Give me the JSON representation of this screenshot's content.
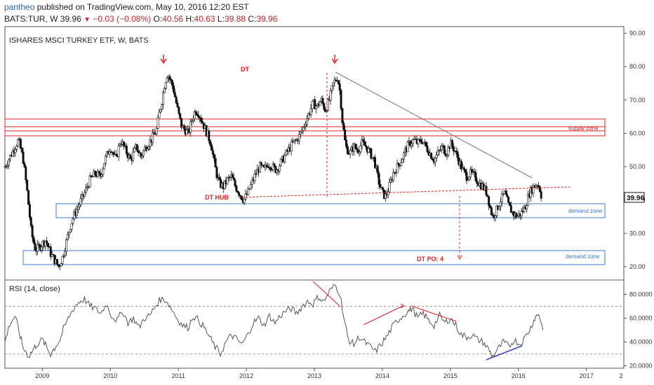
{
  "header": {
    "author": "pantheo",
    "published": "published on TradingView.com, May 10, 2016 12:20 EST",
    "symbol": "BATS:TUR, W",
    "last": "39.96",
    "change": "−0.03 (−0.08%)",
    "o_label": "O:",
    "o_value": "40.56",
    "h_label": "H:",
    "h_value": "40.63",
    "l_label": "L:",
    "l_value": "39.88",
    "c_label": "C:",
    "c_value": "39.96"
  },
  "price_pane": {
    "title": "ISHARES MSCI TURKEY ETF, W, BATS",
    "price_ticks": [
      "90.00",
      "80.00",
      "70.00",
      "60.00",
      "50.00",
      "40.00",
      "30.00",
      "20.00"
    ],
    "last_price_tag": "39.96",
    "annotations": {
      "dt": "DT",
      "dt_hub": "DT HUB",
      "dt_po": "DT PO: 4",
      "supply_zone": "supply zone",
      "demand_zone_upper": "demand zone",
      "demand_zone_lower": "demand zone"
    }
  },
  "rsi_pane": {
    "title": "RSI (14, close)",
    "ticks": [
      "80.0000",
      "60.0000",
      "40.0000",
      "20.0000"
    ]
  },
  "x_axis": {
    "ticks": [
      "2009",
      "2010",
      "2011",
      "2012",
      "2013",
      "2014",
      "2015",
      "2016",
      "2017",
      "2"
    ]
  },
  "colors": {
    "candle": "#111111",
    "annotation_red": "#e02020",
    "zone_red": "#e02020",
    "zone_blue": "#3f78c8",
    "trendline_gray": "#777777",
    "rsi_line": "#555555",
    "rsi_blue": "#3344cc"
  },
  "chart_data": [
    {
      "type": "candlestick",
      "title": "ISHARES MSCI TURKEY ETF, W, BATS",
      "interval": "weekly",
      "y_range": [
        16,
        92
      ],
      "x_range": [
        2008.45,
        2017.55
      ],
      "close_path": [
        [
          2008.45,
          50
        ],
        [
          2008.55,
          54
        ],
        [
          2008.65,
          58
        ],
        [
          2008.72,
          52
        ],
        [
          2008.78,
          42
        ],
        [
          2008.84,
          30
        ],
        [
          2008.9,
          25
        ],
        [
          2008.96,
          26
        ],
        [
          2009.05,
          28
        ],
        [
          2009.12,
          24
        ],
        [
          2009.18,
          22
        ],
        [
          2009.24,
          20
        ],
        [
          2009.3,
          23
        ],
        [
          2009.36,
          28
        ],
        [
          2009.42,
          33
        ],
        [
          2009.48,
          36
        ],
        [
          2009.55,
          39
        ],
        [
          2009.62,
          42
        ],
        [
          2009.7,
          46
        ],
        [
          2009.78,
          48
        ],
        [
          2009.85,
          47
        ],
        [
          2009.92,
          52
        ],
        [
          2010.0,
          56
        ],
        [
          2010.08,
          52
        ],
        [
          2010.15,
          58
        ],
        [
          2010.22,
          55
        ],
        [
          2010.3,
          52
        ],
        [
          2010.38,
          56
        ],
        [
          2010.45,
          53
        ],
        [
          2010.52,
          56
        ],
        [
          2010.6,
          58
        ],
        [
          2010.68,
          61
        ],
        [
          2010.72,
          66
        ],
        [
          2010.76,
          70
        ],
        [
          2010.8,
          75
        ],
        [
          2010.84,
          78
        ],
        [
          2010.88,
          76
        ],
        [
          2010.92,
          74
        ],
        [
          2010.96,
          70
        ],
        [
          2011.0,
          66
        ],
        [
          2011.05,
          62
        ],
        [
          2011.1,
          61
        ],
        [
          2011.15,
          60
        ],
        [
          2011.2,
          64
        ],
        [
          2011.25,
          67
        ],
        [
          2011.3,
          66
        ],
        [
          2011.36,
          63
        ],
        [
          2011.42,
          60
        ],
        [
          2011.48,
          57
        ],
        [
          2011.52,
          52
        ],
        [
          2011.56,
          48
        ],
        [
          2011.6,
          45
        ],
        [
          2011.66,
          44
        ],
        [
          2011.72,
          46
        ],
        [
          2011.78,
          47
        ],
        [
          2011.84,
          44
        ],
        [
          2011.9,
          42
        ],
        [
          2011.96,
          40
        ],
        [
          2012.02,
          42
        ],
        [
          2012.08,
          45
        ],
        [
          2012.14,
          48
        ],
        [
          2012.2,
          50
        ],
        [
          2012.26,
          49
        ],
        [
          2012.32,
          51
        ],
        [
          2012.38,
          50
        ],
        [
          2012.44,
          49
        ],
        [
          2012.5,
          51
        ],
        [
          2012.56,
          53
        ],
        [
          2012.62,
          55
        ],
        [
          2012.68,
          57
        ],
        [
          2012.74,
          58
        ],
        [
          2012.8,
          60
        ],
        [
          2012.86,
          63
        ],
        [
          2012.92,
          66
        ],
        [
          2012.98,
          69
        ],
        [
          2013.04,
          68
        ],
        [
          2013.1,
          70
        ],
        [
          2013.16,
          67
        ],
        [
          2013.22,
          70
        ],
        [
          2013.28,
          75
        ],
        [
          2013.34,
          77
        ],
        [
          2013.38,
          72
        ],
        [
          2013.41,
          64
        ],
        [
          2013.46,
          56
        ],
        [
          2013.52,
          54
        ],
        [
          2013.58,
          56
        ],
        [
          2013.64,
          55
        ],
        [
          2013.7,
          57
        ],
        [
          2013.76,
          56
        ],
        [
          2013.82,
          54
        ],
        [
          2013.88,
          52
        ],
        [
          2013.94,
          46
        ],
        [
          2014.0,
          42
        ],
        [
          2014.05,
          41
        ],
        [
          2014.1,
          44
        ],
        [
          2014.16,
          48
        ],
        [
          2014.22,
          50
        ],
        [
          2014.28,
          52
        ],
        [
          2014.34,
          55
        ],
        [
          2014.4,
          57
        ],
        [
          2014.46,
          58
        ],
        [
          2014.52,
          57
        ],
        [
          2014.58,
          58
        ],
        [
          2014.64,
          56
        ],
        [
          2014.7,
          54
        ],
        [
          2014.76,
          52
        ],
        [
          2014.82,
          54
        ],
        [
          2014.88,
          56
        ],
        [
          2014.94,
          54
        ],
        [
          2015.0,
          57
        ],
        [
          2015.06,
          55
        ],
        [
          2015.12,
          52
        ],
        [
          2015.18,
          49
        ],
        [
          2015.24,
          47
        ],
        [
          2015.3,
          48
        ],
        [
          2015.36,
          47
        ],
        [
          2015.42,
          45
        ],
        [
          2015.48,
          44
        ],
        [
          2015.54,
          42
        ],
        [
          2015.58,
          38
        ],
        [
          2015.62,
          35
        ],
        [
          2015.68,
          37
        ],
        [
          2015.74,
          40
        ],
        [
          2015.8,
          42
        ],
        [
          2015.86,
          38
        ],
        [
          2015.92,
          36
        ],
        [
          2015.98,
          35
        ],
        [
          2016.04,
          36
        ],
        [
          2016.1,
          38
        ],
        [
          2016.16,
          42
        ],
        [
          2016.22,
          44
        ],
        [
          2016.28,
          45
        ],
        [
          2016.32,
          43
        ],
        [
          2016.35,
          39.96
        ]
      ]
    },
    {
      "type": "line",
      "title": "RSI (14, close)",
      "y_range": [
        18,
        92
      ],
      "levels": [
        70,
        30
      ],
      "points": [
        [
          2008.45,
          40
        ],
        [
          2008.52,
          55
        ],
        [
          2008.6,
          62
        ],
        [
          2008.66,
          48
        ],
        [
          2008.72,
          35
        ],
        [
          2008.8,
          28
        ],
        [
          2008.86,
          33
        ],
        [
          2008.92,
          38
        ],
        [
          2009.0,
          42
        ],
        [
          2009.06,
          36
        ],
        [
          2009.12,
          30
        ],
        [
          2009.18,
          35
        ],
        [
          2009.26,
          42
        ],
        [
          2009.32,
          52
        ],
        [
          2009.4,
          62
        ],
        [
          2009.48,
          70
        ],
        [
          2009.55,
          74
        ],
        [
          2009.62,
          76
        ],
        [
          2009.7,
          70
        ],
        [
          2009.78,
          68
        ],
        [
          2009.86,
          64
        ],
        [
          2009.94,
          72
        ],
        [
          2010.02,
          62
        ],
        [
          2010.1,
          58
        ],
        [
          2010.18,
          66
        ],
        [
          2010.26,
          56
        ],
        [
          2010.34,
          60
        ],
        [
          2010.42,
          52
        ],
        [
          2010.5,
          60
        ],
        [
          2010.58,
          62
        ],
        [
          2010.66,
          70
        ],
        [
          2010.74,
          76
        ],
        [
          2010.82,
          75
        ],
        [
          2010.9,
          68
        ],
        [
          2010.98,
          60
        ],
        [
          2011.06,
          54
        ],
        [
          2011.14,
          52
        ],
        [
          2011.22,
          62
        ],
        [
          2011.3,
          58
        ],
        [
          2011.38,
          52
        ],
        [
          2011.46,
          44
        ],
        [
          2011.54,
          36
        ],
        [
          2011.62,
          30
        ],
        [
          2011.7,
          40
        ],
        [
          2011.78,
          46
        ],
        [
          2011.86,
          42
        ],
        [
          2011.94,
          38
        ],
        [
          2012.02,
          46
        ],
        [
          2012.1,
          56
        ],
        [
          2012.18,
          60
        ],
        [
          2012.26,
          54
        ],
        [
          2012.34,
          62
        ],
        [
          2012.42,
          56
        ],
        [
          2012.5,
          62
        ],
        [
          2012.58,
          66
        ],
        [
          2012.66,
          68
        ],
        [
          2012.74,
          64
        ],
        [
          2012.82,
          70
        ],
        [
          2012.9,
          74
        ],
        [
          2012.98,
          72
        ],
        [
          2013.06,
          78
        ],
        [
          2013.14,
          74
        ],
        [
          2013.22,
          82
        ],
        [
          2013.3,
          88
        ],
        [
          2013.38,
          80
        ],
        [
          2013.44,
          58
        ],
        [
          2013.5,
          42
        ],
        [
          2013.58,
          38
        ],
        [
          2013.66,
          44
        ],
        [
          2013.74,
          40
        ],
        [
          2013.82,
          36
        ],
        [
          2013.9,
          32
        ],
        [
          2013.98,
          38
        ],
        [
          2014.06,
          44
        ],
        [
          2014.14,
          52
        ],
        [
          2014.22,
          58
        ],
        [
          2014.3,
          62
        ],
        [
          2014.38,
          66
        ],
        [
          2014.44,
          68
        ],
        [
          2014.52,
          60
        ],
        [
          2014.6,
          64
        ],
        [
          2014.68,
          58
        ],
        [
          2014.76,
          54
        ],
        [
          2014.84,
          62
        ],
        [
          2014.92,
          56
        ],
        [
          2015.0,
          60
        ],
        [
          2015.08,
          54
        ],
        [
          2015.16,
          46
        ],
        [
          2015.24,
          44
        ],
        [
          2015.32,
          46
        ],
        [
          2015.4,
          42
        ],
        [
          2015.48,
          40
        ],
        [
          2015.56,
          34
        ],
        [
          2015.62,
          28
        ],
        [
          2015.7,
          34
        ],
        [
          2015.78,
          40
        ],
        [
          2015.86,
          36
        ],
        [
          2015.94,
          42
        ],
        [
          2016.02,
          38
        ],
        [
          2016.1,
          44
        ],
        [
          2016.18,
          52
        ],
        [
          2016.24,
          60
        ],
        [
          2016.3,
          64
        ],
        [
          2016.36,
          50
        ]
      ]
    }
  ]
}
